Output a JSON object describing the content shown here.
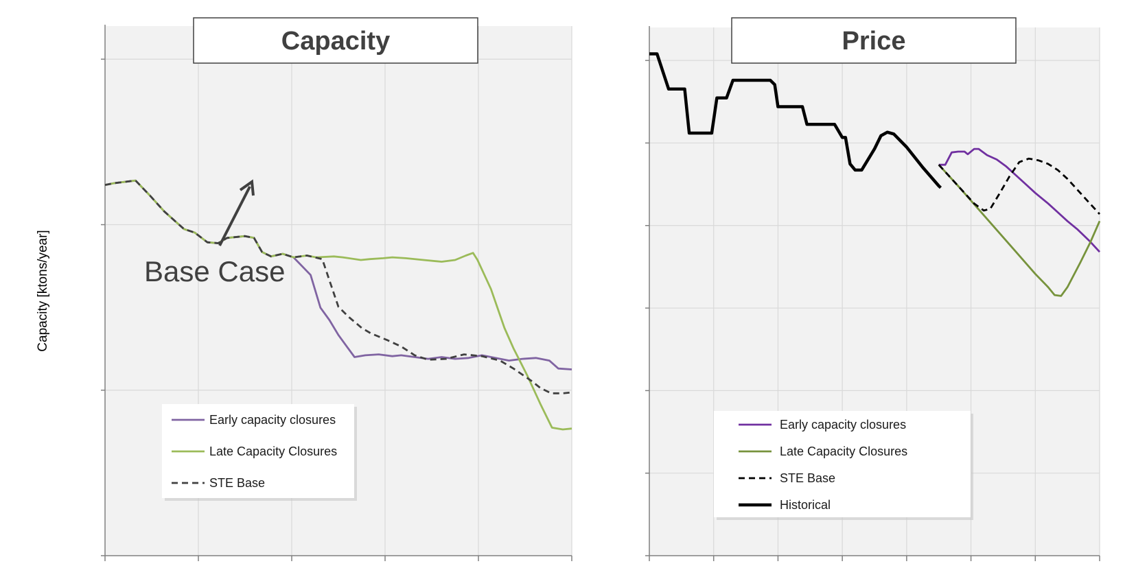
{
  "ylabel": "Capacity [ktons/year]",
  "chart_data": [
    {
      "type": "line",
      "title": "Capacity",
      "xlabel": "",
      "ylabel": "Capacity [ktons/year]",
      "grid": true,
      "legend_position": "bottom-left",
      "annotation": "Base Case",
      "series": [
        {
          "name": "Early capacity closures",
          "color": "#8064a2",
          "style": "solid",
          "points": [
            [
              0,
              72
            ],
            [
              0.1,
              72.2
            ],
            [
              0.34,
              72.5
            ],
            [
              0.5,
              70.8
            ],
            [
              0.66,
              69
            ],
            [
              0.88,
              67
            ],
            [
              1.0,
              66.6
            ],
            [
              1.14,
              65.5
            ],
            [
              1.26,
              65.4
            ],
            [
              1.36,
              66
            ],
            [
              1.56,
              66.2
            ],
            [
              1.66,
              66
            ],
            [
              1.75,
              64.4
            ],
            [
              1.85,
              63.9
            ],
            [
              1.98,
              64.2
            ],
            [
              2.1,
              63.8
            ],
            [
              2.29,
              61.8
            ],
            [
              2.4,
              58.1
            ],
            [
              2.5,
              56.7
            ],
            [
              2.6,
              55
            ],
            [
              2.7,
              53.6
            ],
            [
              2.78,
              52.5
            ],
            [
              2.9,
              52.7
            ],
            [
              3.05,
              52.8
            ],
            [
              3.2,
              52.6
            ],
            [
              3.3,
              52.7
            ],
            [
              3.45,
              52.5
            ],
            [
              3.6,
              52.3
            ],
            [
              3.75,
              52.5
            ],
            [
              3.9,
              52.3
            ],
            [
              4.05,
              52.4
            ],
            [
              4.2,
              52.7
            ],
            [
              4.35,
              52.4
            ],
            [
              4.5,
              52.1
            ],
            [
              4.65,
              52.3
            ],
            [
              4.8,
              52.4
            ],
            [
              4.95,
              52.1
            ],
            [
              5.05,
              51.2
            ],
            [
              5.2,
              51.1
            ]
          ]
        },
        {
          "name": "Late Capacity Closures",
          "color": "#9bbb59",
          "style": "solid",
          "points": [
            [
              0,
              72
            ],
            [
              0.1,
              72.2
            ],
            [
              0.34,
              72.5
            ],
            [
              0.5,
              70.8
            ],
            [
              0.66,
              69
            ],
            [
              0.88,
              67
            ],
            [
              1.0,
              66.6
            ],
            [
              1.14,
              65.5
            ],
            [
              1.26,
              65.4
            ],
            [
              1.36,
              66
            ],
            [
              1.56,
              66.2
            ],
            [
              1.66,
              66
            ],
            [
              1.75,
              64.4
            ],
            [
              1.85,
              63.9
            ],
            [
              1.98,
              64.2
            ],
            [
              2.1,
              63.8
            ],
            [
              2.25,
              64
            ],
            [
              2.35,
              63.8
            ],
            [
              2.55,
              63.9
            ],
            [
              2.65,
              63.8
            ],
            [
              2.85,
              63.5
            ],
            [
              2.95,
              63.6
            ],
            [
              3.1,
              63.7
            ],
            [
              3.2,
              63.8
            ],
            [
              3.35,
              63.7
            ],
            [
              3.55,
              63.5
            ],
            [
              3.75,
              63.3
            ],
            [
              3.9,
              63.5
            ],
            [
              4.02,
              64
            ],
            [
              4.1,
              64.3
            ],
            [
              4.15,
              63.5
            ],
            [
              4.3,
              60.2
            ],
            [
              4.45,
              55.8
            ],
            [
              4.55,
              53.5
            ],
            [
              4.7,
              50.5
            ],
            [
              4.85,
              47.2
            ],
            [
              4.98,
              44.5
            ],
            [
              5.1,
              44.3
            ],
            [
              5.2,
              44.4
            ]
          ]
        },
        {
          "name": "STE Base",
          "color": "#404040",
          "style": "dashed",
          "points": [
            [
              0,
              72
            ],
            [
              0.1,
              72.2
            ],
            [
              0.34,
              72.5
            ],
            [
              0.5,
              70.8
            ],
            [
              0.66,
              69
            ],
            [
              0.88,
              67
            ],
            [
              1.0,
              66.6
            ],
            [
              1.14,
              65.5
            ],
            [
              1.26,
              65.4
            ],
            [
              1.36,
              66
            ],
            [
              1.56,
              66.2
            ],
            [
              1.66,
              66
            ],
            [
              1.75,
              64.4
            ],
            [
              1.85,
              63.9
            ],
            [
              1.98,
              64.2
            ],
            [
              2.1,
              63.8
            ],
            [
              2.25,
              64
            ],
            [
              2.42,
              63.6
            ],
            [
              2.5,
              61.2
            ],
            [
              2.6,
              58.2
            ],
            [
              2.72,
              57
            ],
            [
              2.86,
              55.8
            ],
            [
              2.96,
              55.2
            ],
            [
              3.15,
              54.4
            ],
            [
              3.3,
              53.7
            ],
            [
              3.45,
              52.7
            ],
            [
              3.6,
              52.2
            ],
            [
              3.8,
              52.3
            ],
            [
              4.0,
              52.8
            ],
            [
              4.2,
              52.6
            ],
            [
              4.4,
              52.1
            ],
            [
              4.55,
              51.2
            ],
            [
              4.75,
              49.8
            ],
            [
              4.85,
              49
            ],
            [
              4.97,
              48.4
            ],
            [
              5.1,
              48.4
            ],
            [
              5.2,
              48.5
            ]
          ]
        }
      ],
      "xlim": [
        0,
        5.2
      ],
      "ylim": [
        30,
        90
      ]
    },
    {
      "type": "line",
      "title": "Price",
      "xlabel": "",
      "ylabel": "",
      "grid": true,
      "legend_position": "bottom-left",
      "series": [
        {
          "name": "Early capacity closures",
          "color": "#7030a0",
          "style": "solid",
          "points": [
            [
              4.5,
              3.44
            ],
            [
              4.6,
              3.44
            ],
            [
              4.7,
              3.58
            ],
            [
              4.8,
              3.59
            ],
            [
              4.9,
              3.59
            ],
            [
              4.95,
              3.56
            ],
            [
              5.05,
              3.62
            ],
            [
              5.12,
              3.62
            ],
            [
              5.25,
              3.55
            ],
            [
              5.4,
              3.5
            ],
            [
              5.55,
              3.42
            ],
            [
              5.7,
              3.32
            ],
            [
              5.85,
              3.22
            ],
            [
              6.0,
              3.12
            ],
            [
              6.2,
              3.0
            ],
            [
              6.35,
              2.9
            ],
            [
              6.5,
              2.8
            ],
            [
              6.65,
              2.71
            ],
            [
              6.85,
              2.57
            ],
            [
              7.0,
              2.45
            ]
          ]
        },
        {
          "name": "Late Capacity Closures",
          "color": "#77933c",
          "style": "solid",
          "points": [
            [
              4.5,
              3.44
            ],
            [
              4.8,
              3.2
            ],
            [
              5.1,
              2.95
            ],
            [
              5.4,
              2.7
            ],
            [
              5.7,
              2.45
            ],
            [
              6.0,
              2.2
            ],
            [
              6.2,
              2.05
            ],
            [
              6.3,
              1.96
            ],
            [
              6.4,
              1.95
            ],
            [
              6.5,
              2.05
            ],
            [
              6.7,
              2.33
            ],
            [
              6.85,
              2.55
            ],
            [
              7.0,
              2.8
            ]
          ]
        },
        {
          "name": "STE Base",
          "color": "#000000",
          "style": "dashed",
          "points": [
            [
              4.5,
              3.44
            ],
            [
              4.8,
              3.2
            ],
            [
              5.05,
              3.0
            ],
            [
              5.2,
              2.92
            ],
            [
              5.3,
              2.94
            ],
            [
              5.45,
              3.12
            ],
            [
              5.6,
              3.31
            ],
            [
              5.75,
              3.47
            ],
            [
              5.9,
              3.51
            ],
            [
              6.05,
              3.49
            ],
            [
              6.2,
              3.45
            ],
            [
              6.35,
              3.38
            ],
            [
              6.5,
              3.28
            ],
            [
              6.7,
              3.12
            ],
            [
              6.85,
              3.0
            ],
            [
              7.0,
              2.88
            ]
          ]
        },
        {
          "name": "Historical",
          "color": "#000000",
          "style": "solid-thick",
          "points": [
            [
              0,
              4.7
            ],
            [
              0.12,
              4.7
            ],
            [
              0.3,
              4.3
            ],
            [
              0.55,
              4.3
            ],
            [
              0.62,
              3.8
            ],
            [
              0.97,
              3.8
            ],
            [
              1.05,
              4.2
            ],
            [
              1.2,
              4.2
            ],
            [
              1.3,
              4.4
            ],
            [
              1.52,
              4.4
            ],
            [
              1.88,
              4.4
            ],
            [
              1.95,
              4.35
            ],
            [
              2.0,
              4.1
            ],
            [
              2.1,
              4.1
            ],
            [
              2.38,
              4.1
            ],
            [
              2.45,
              3.9
            ],
            [
              2.6,
              3.9
            ],
            [
              2.88,
              3.9
            ],
            [
              3.0,
              3.75
            ],
            [
              3.05,
              3.75
            ],
            [
              3.12,
              3.45
            ],
            [
              3.2,
              3.38
            ],
            [
              3.3,
              3.38
            ],
            [
              3.5,
              3.62
            ],
            [
              3.6,
              3.77
            ],
            [
              3.7,
              3.81
            ],
            [
              3.8,
              3.79
            ],
            [
              4.0,
              3.64
            ],
            [
              4.25,
              3.41
            ],
            [
              4.5,
              3.2
            ],
            [
              4.53,
              3.18
            ]
          ]
        }
      ],
      "xlim": [
        0,
        7
      ],
      "ylim": [
        -1,
        5
      ]
    }
  ]
}
